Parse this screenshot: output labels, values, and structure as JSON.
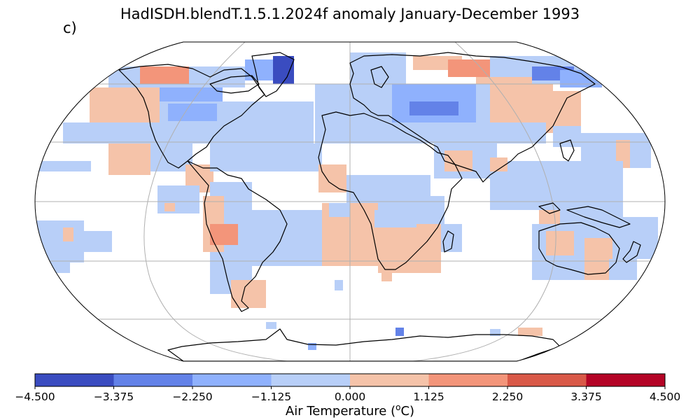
{
  "title": "HadISDH.blendT.1.5.1.2024f anomaly January-December 1993",
  "panel_label": "c)",
  "colorbar": {
    "label_main": "Air Temperature (",
    "label_sup": "o",
    "label_end": "C)",
    "ticks": [
      "−4.500",
      "−3.375",
      "−2.250",
      "−1.125",
      "0.000",
      "1.125",
      "2.250",
      "3.375",
      "4.500"
    ],
    "colors": [
      "#3a4cc0",
      "#6382e8",
      "#8fb1fd",
      "#b8cff8",
      "#f5c3a9",
      "#f3957a",
      "#d95948",
      "#b40426"
    ]
  },
  "map": {
    "projection": "Robinson",
    "gridlines": true,
    "coastlines": true,
    "grid_color": "#b0b0b0"
  }
}
